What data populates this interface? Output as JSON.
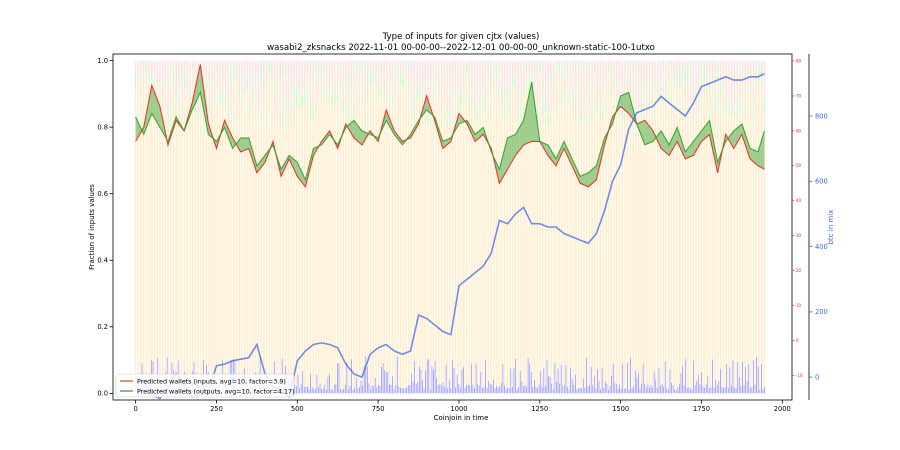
{
  "chart_data": {
    "type": "line",
    "title": "Type of inputs for given cjtx (values)",
    "subtitle": "wasabi2_zksnacks 2022-11-01 00-00-00--2022-12-01 00-00-00_unknown-static-100-1utxo",
    "xlabel": "Coinjoin in time",
    "ylabel": "Fraction of inputs values",
    "ylabel_right": "btc in mix",
    "xlim": [
      -70,
      2030
    ],
    "ylim": [
      -0.02,
      1.02
    ],
    "ylim_right_red": [
      -17,
      82
    ],
    "ylim_right_blue": [
      -70,
      990
    ],
    "x_ticks": [
      0,
      250,
      500,
      750,
      1000,
      1250,
      1500,
      1750,
      2000
    ],
    "x_tick_labels": [
      "0",
      "250",
      "500",
      "750",
      "1000",
      "1250",
      "1500",
      "1750",
      "2000"
    ],
    "y_ticks": [
      0.0,
      0.2,
      0.4,
      0.6,
      0.8,
      1.0
    ],
    "y_tick_labels": [
      "0.0",
      "0.2",
      "0.4",
      "0.6",
      "0.8",
      "1.0"
    ],
    "y_ticks_right_red": [
      -10,
      0,
      10,
      20,
      30,
      40,
      50,
      60,
      70,
      80
    ],
    "y_tick_labels_right_red": [
      "-10",
      "0",
      "10",
      "20",
      "30",
      "40",
      "50",
      "60",
      "70",
      "80"
    ],
    "y_ticks_right_blue": [
      0,
      200,
      400,
      600,
      800
    ],
    "y_tick_labels_right_blue": [
      "0",
      "200",
      "400",
      "600",
      "800"
    ],
    "grid": false,
    "legend_position": "lower-left",
    "series": [
      {
        "name": "Predicted wallets (inputs, avg=10, factor=3.9)",
        "color": "#e8392e",
        "axis": "right_red",
        "x": [
          0,
          25,
          50,
          75,
          100,
          125,
          150,
          175,
          200,
          225,
          250,
          275,
          300,
          325,
          350,
          375,
          400,
          425,
          450,
          475,
          500,
          525,
          550,
          575,
          600,
          625,
          650,
          675,
          700,
          725,
          750,
          775,
          800,
          825,
          850,
          875,
          900,
          925,
          950,
          975,
          1000,
          1025,
          1050,
          1075,
          1100,
          1125,
          1150,
          1175,
          1200,
          1225,
          1250,
          1275,
          1300,
          1325,
          1350,
          1375,
          1400,
          1425,
          1450,
          1475,
          1500,
          1525,
          1550,
          1575,
          1600,
          1625,
          1650,
          1675,
          1700,
          1725,
          1750,
          1775,
          1800,
          1825,
          1850,
          1875,
          1900,
          1925,
          1945
        ],
        "values": [
          57,
          61,
          73,
          67,
          56,
          63,
          60,
          68,
          79,
          62,
          55,
          63,
          58,
          54,
          55,
          48,
          51,
          57,
          47,
          52,
          47,
          44,
          53,
          57,
          60,
          55,
          62,
          58,
          56,
          60,
          57,
          66,
          60,
          57,
          58,
          62,
          70,
          63,
          55,
          57,
          65,
          62,
          57,
          59,
          55,
          45,
          49,
          53,
          56,
          57,
          57,
          53,
          50,
          55,
          50,
          45,
          44,
          46,
          56,
          64,
          67,
          65,
          62,
          63,
          60,
          55,
          53,
          57,
          52,
          53,
          57,
          59,
          48,
          59,
          55,
          59,
          52,
          50,
          49
        ]
      },
      {
        "name": "Predicted wallets (outputs, avg=10, factor=4.17)",
        "color": "#2ca02c",
        "axis": "right_red",
        "x": [
          0,
          25,
          50,
          75,
          100,
          125,
          150,
          175,
          200,
          225,
          250,
          275,
          300,
          325,
          350,
          375,
          400,
          425,
          450,
          475,
          500,
          525,
          550,
          575,
          600,
          625,
          650,
          675,
          700,
          725,
          750,
          775,
          800,
          825,
          850,
          875,
          900,
          925,
          950,
          975,
          1000,
          1025,
          1050,
          1075,
          1100,
          1125,
          1150,
          1175,
          1200,
          1225,
          1250,
          1275,
          1300,
          1325,
          1350,
          1375,
          1400,
          1425,
          1450,
          1475,
          1500,
          1525,
          1550,
          1575,
          1600,
          1625,
          1650,
          1675,
          1700,
          1725,
          1750,
          1775,
          1800,
          1825,
          1850,
          1875,
          1900,
          1925,
          1945
        ],
        "values": [
          64,
          59,
          65,
          61,
          57,
          64,
          60,
          66,
          71,
          59,
          57,
          61,
          55,
          58,
          58,
          50,
          53,
          56,
          49,
          53,
          51,
          46,
          55,
          56,
          59,
          56,
          61,
          63,
          60,
          59,
          58,
          63,
          59,
          56,
          59,
          63,
          66,
          64,
          57,
          58,
          62,
          63,
          59,
          61,
          54,
          49,
          58,
          59,
          63,
          74,
          57,
          56,
          52,
          57,
          52,
          47,
          48,
          50,
          58,
          62,
          70,
          71,
          62,
          56,
          57,
          60,
          56,
          61,
          54,
          57,
          60,
          63,
          51,
          57,
          60,
          62,
          55,
          54,
          60
        ]
      },
      {
        "name": "",
        "color": "#4169e1",
        "axis": "right_blue",
        "x": [
          0,
          25,
          50,
          75,
          100,
          125,
          150,
          175,
          200,
          225,
          250,
          275,
          300,
          325,
          350,
          375,
          400,
          425,
          450,
          475,
          500,
          525,
          550,
          575,
          600,
          625,
          650,
          675,
          700,
          725,
          750,
          775,
          800,
          825,
          850,
          875,
          900,
          925,
          950,
          975,
          1000,
          1025,
          1050,
          1075,
          1100,
          1125,
          1150,
          1175,
          1200,
          1225,
          1250,
          1275,
          1300,
          1325,
          1350,
          1375,
          1400,
          1425,
          1450,
          1475,
          1500,
          1525,
          1550,
          1575,
          1600,
          1625,
          1650,
          1675,
          1700,
          1725,
          1750,
          1775,
          1800,
          1825,
          1850,
          1875,
          1900,
          1925,
          1945
        ],
        "values": [
          0,
          -15,
          -55,
          -65,
          -35,
          10,
          -20,
          -60,
          -55,
          -45,
          35,
          40,
          50,
          55,
          60,
          100,
          10,
          -30,
          -40,
          -60,
          50,
          80,
          100,
          105,
          100,
          90,
          40,
          10,
          0,
          70,
          90,
          100,
          80,
          70,
          80,
          190,
          180,
          160,
          140,
          130,
          280,
          300,
          320,
          340,
          380,
          480,
          470,
          500,
          520,
          470,
          470,
          460,
          460,
          440,
          430,
          420,
          410,
          440,
          510,
          600,
          650,
          760,
          810,
          820,
          830,
          860,
          840,
          820,
          800,
          840,
          890,
          900,
          910,
          920,
          910,
          910,
          920,
          920,
          930
        ]
      }
    ],
    "background_bars": [
      {
        "name": "orange input fraction",
        "color": "#ffd180"
      },
      {
        "name": "green input fraction",
        "color": "#90ee90"
      },
      {
        "name": "red input fraction",
        "color": "#ffb0b0"
      },
      {
        "name": "blue input fraction",
        "color": "#8080ff"
      }
    ]
  }
}
